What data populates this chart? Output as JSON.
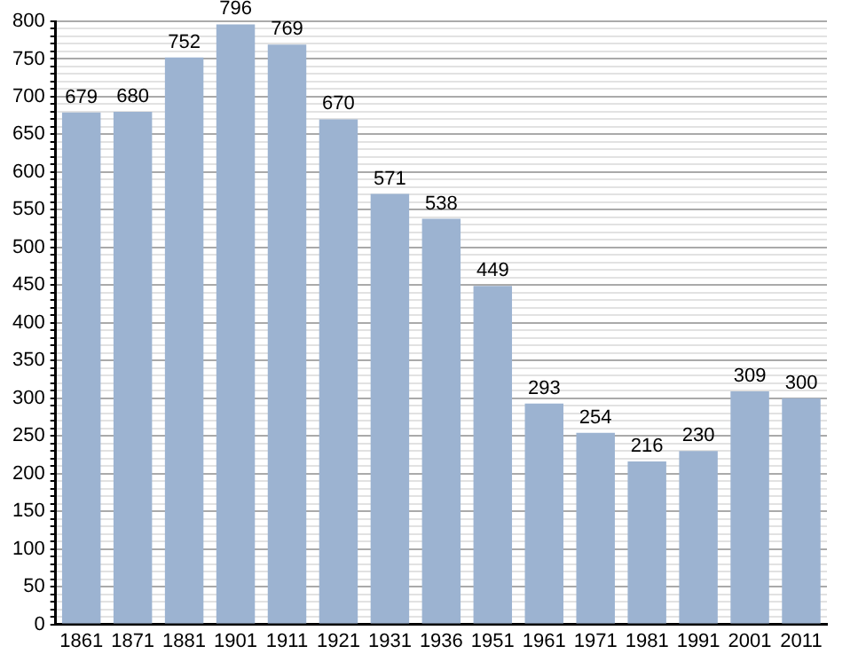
{
  "chart_data": {
    "type": "bar",
    "categories": [
      "1861",
      "1871",
      "1881",
      "1901",
      "1911",
      "1921",
      "1931",
      "1936",
      "1951",
      "1961",
      "1971",
      "1981",
      "1991",
      "2001",
      "2011"
    ],
    "values": [
      679,
      680,
      752,
      796,
      769,
      670,
      571,
      538,
      449,
      293,
      254,
      216,
      230,
      309,
      300
    ],
    "color": "#9cb3d1",
    "ylim": [
      0,
      800
    ],
    "yticks": [
      0,
      {
        "value": 10,
        "label": null
      },
      {
        "value": 20,
        "label": null
      },
      {
        "value": 30,
        "label": null
      },
      {
        "value": 40,
        "label": null
      },
      50,
      {
        "value": 60,
        "label": null
      },
      {
        "value": 70,
        "label": null
      },
      {
        "value": 80,
        "label": null
      },
      {
        "value": 90,
        "label": null
      },
      100,
      {
        "value": 110,
        "label": null
      },
      {
        "value": 120,
        "label": null
      },
      {
        "value": 130,
        "label": null
      },
      {
        "value": 140,
        "label": null
      },
      150,
      {
        "value": 160,
        "label": null
      },
      {
        "value": 170,
        "label": null
      },
      {
        "value": 180,
        "label": null
      },
      {
        "value": 190,
        "label": null
      },
      200,
      {
        "value": 210,
        "label": null
      },
      {
        "value": 220,
        "label": null
      },
      {
        "value": 230,
        "label": null
      },
      {
        "value": 240,
        "label": null
      },
      250,
      {
        "value": 260,
        "label": null
      },
      {
        "value": 270,
        "label": null
      },
      {
        "value": 280,
        "label": null
      },
      {
        "value": 290,
        "label": null
      },
      300,
      {
        "value": 310,
        "label": null
      },
      {
        "value": 320,
        "label": null
      },
      {
        "value": 330,
        "label": null
      },
      {
        "value": 340,
        "label": null
      },
      350,
      {
        "value": 360,
        "label": null
      },
      {
        "value": 370,
        "label": null
      },
      {
        "value": 380,
        "label": null
      },
      {
        "value": 390,
        "label": null
      },
      400,
      {
        "value": 410,
        "label": null
      },
      {
        "value": 420,
        "label": null
      },
      {
        "value": 430,
        "label": null
      },
      {
        "value": 440,
        "label": null
      },
      450,
      {
        "value": 460,
        "label": null
      },
      {
        "value": 470,
        "label": null
      },
      {
        "value": 480,
        "label": null
      },
      {
        "value": 490,
        "label": null
      },
      500,
      {
        "value": 510,
        "label": null
      },
      {
        "value": 520,
        "label": null
      },
      {
        "value": 530,
        "label": null
      },
      {
        "value": 540,
        "label": null
      },
      550,
      {
        "value": 560,
        "label": null
      },
      {
        "value": 570,
        "label": null
      },
      {
        "value": 580,
        "label": null
      },
      {
        "value": 590,
        "label": null
      },
      600,
      {
        "value": 610,
        "label": null
      },
      {
        "value": 620,
        "label": null
      },
      {
        "value": 630,
        "label": null
      },
      {
        "value": 640,
        "label": null
      },
      650,
      {
        "value": 660,
        "label": null
      },
      {
        "value": 670,
        "label": null
      },
      {
        "value": 680,
        "label": null
      },
      {
        "value": 690,
        "label": null
      },
      700,
      {
        "value": 710,
        "label": null
      },
      {
        "value": 720,
        "label": null
      },
      {
        "value": 730,
        "label": null
      },
      {
        "value": 740,
        "label": null
      },
      750,
      {
        "value": 760,
        "label": null
      },
      {
        "value": 770,
        "label": null
      },
      {
        "value": 780,
        "label": null
      },
      {
        "value": 790,
        "label": null
      },
      800
    ],
    "grid": "y",
    "data_labels": true
  }
}
